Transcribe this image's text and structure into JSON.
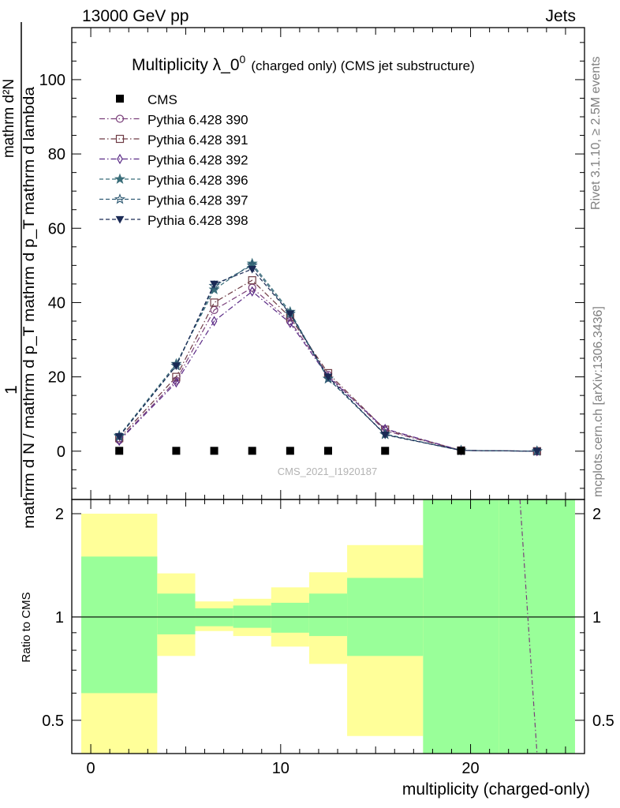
{
  "header": {
    "left": "13000 GeV pp",
    "right": "Jets"
  },
  "title": {
    "main": "Multiplicity λ_0",
    "superscript": "0",
    "suffix": "(charged only) (CMS jet substructure)"
  },
  "side_labels": {
    "rivet": "Rivet 3.1.10, ≥ 2.5M events",
    "mcplots": "mcplots.cern.ch [arXiv:1306.3436]"
  },
  "watermark": "CMS_2021_I1920187",
  "ylabel_main": {
    "one": "1",
    "numerator": "mathrm d²N",
    "denominator": "mathrm d N / mathrm d p_T mathrm d p_T mathrm d lambda"
  },
  "ratio_ylabel": "Ratio to CMS",
  "xlabel": "multiplicity (charged-only)",
  "chart_data": {
    "type": "line",
    "main_panel": {
      "xlim": [
        -1,
        26
      ],
      "ylim": [
        -13,
        114
      ],
      "yticks": [
        0,
        20,
        40,
        60,
        80,
        100
      ],
      "xticks": [
        0,
        10,
        20
      ],
      "legend_placement": "top-left",
      "cms": {
        "name": "CMS",
        "x": [
          1.5,
          4.5,
          6.5,
          8.5,
          10.5,
          12.5,
          15.5,
          19.5,
          23.5
        ],
        "y": [
          0.1,
          0.1,
          0.1,
          0.1,
          0.1,
          0.1,
          0.1,
          0.1,
          0.0
        ]
      },
      "series": [
        {
          "name": "Pythia 6.428 390",
          "color": "#7a3f7a",
          "marker": "circle",
          "dash": "dashdot",
          "x": [
            1.5,
            4.5,
            6.5,
            8.5,
            10.5,
            12.5,
            15.5,
            19.5,
            23.5
          ],
          "y": [
            3.0,
            19.0,
            38.0,
            44.0,
            35.0,
            20.5,
            5.5,
            0.2,
            0.0
          ]
        },
        {
          "name": "Pythia 6.428 391",
          "color": "#6e3b44",
          "marker": "square",
          "dash": "dashdot",
          "x": [
            1.5,
            4.5,
            6.5,
            8.5,
            10.5,
            12.5,
            15.5,
            19.5,
            23.5
          ],
          "y": [
            3.5,
            20.0,
            40.0,
            46.0,
            36.0,
            21.0,
            5.8,
            0.2,
            0.0
          ]
        },
        {
          "name": "Pythia 6.428 392",
          "color": "#5a2a86",
          "marker": "diamond",
          "dash": "dashdot",
          "x": [
            1.5,
            4.5,
            6.5,
            8.5,
            10.5,
            12.5,
            15.5,
            19.5,
            23.5
          ],
          "y": [
            2.8,
            18.5,
            35.0,
            43.0,
            34.5,
            20.0,
            6.0,
            0.2,
            0.0
          ]
        },
        {
          "name": "Pythia 6.428 396",
          "color": "#3b6e7a",
          "marker": "star",
          "dash": "dashed",
          "x": [
            1.5,
            4.5,
            6.5,
            8.5,
            10.5,
            12.5,
            15.5,
            19.5,
            23.5
          ],
          "y": [
            4.2,
            23.5,
            43.5,
            50.5,
            37.5,
            19.5,
            4.5,
            0.2,
            0.0
          ]
        },
        {
          "name": "Pythia 6.428 397",
          "color": "#2f5a73",
          "marker": "star-open",
          "dash": "dashed",
          "x": [
            1.5,
            4.5,
            6.5,
            8.5,
            10.5,
            12.5,
            15.5,
            19.5,
            23.5
          ],
          "y": [
            4.0,
            23.0,
            44.5,
            50.0,
            37.0,
            19.5,
            4.6,
            0.2,
            0.0
          ]
        },
        {
          "name": "Pythia 6.428 398",
          "color": "#1b2a55",
          "marker": "triangle-down",
          "dash": "dashed",
          "x": [
            1.5,
            4.5,
            6.5,
            8.5,
            10.5,
            12.5,
            15.5,
            19.5,
            23.5
          ],
          "y": [
            4.0,
            23.0,
            45.0,
            49.0,
            37.0,
            20.0,
            4.4,
            0.2,
            0.0
          ]
        }
      ]
    },
    "ratio_panel": {
      "ylim": [
        0.4,
        2.2
      ],
      "yticks": [
        0.5,
        1,
        2
      ],
      "log_scale": true,
      "reference_line": 1,
      "bands": [
        {
          "x0": -0.5,
          "x1": 3.5,
          "green": [
            0.6,
            1.5
          ],
          "yellow": [
            0.4,
            2.0
          ]
        },
        {
          "x0": 3.5,
          "x1": 5.5,
          "green": [
            0.89,
            1.17
          ],
          "yellow": [
            0.77,
            1.34
          ]
        },
        {
          "x0": 5.5,
          "x1": 7.5,
          "green": [
            0.94,
            1.06
          ],
          "yellow": [
            0.91,
            1.11
          ]
        },
        {
          "x0": 7.5,
          "x1": 9.5,
          "green": [
            0.93,
            1.08
          ],
          "yellow": [
            0.88,
            1.13
          ]
        },
        {
          "x0": 9.5,
          "x1": 11.5,
          "green": [
            0.9,
            1.1
          ],
          "yellow": [
            0.82,
            1.22
          ]
        },
        {
          "x0": 11.5,
          "x1": 13.5,
          "green": [
            0.88,
            1.17
          ],
          "yellow": [
            0.73,
            1.35
          ]
        },
        {
          "x0": 13.5,
          "x1": 17.5,
          "green": [
            0.77,
            1.3
          ],
          "yellow": [
            0.45,
            1.62
          ]
        },
        {
          "x0": 17.5,
          "x1": 21.5,
          "green": [
            0.4,
            2.2
          ],
          "yellow": [
            0.4,
            2.2
          ]
        },
        {
          "x0": 21.5,
          "x1": 25.5,
          "green": [
            0.4,
            2.2
          ],
          "yellow": [
            0.4,
            2.2
          ]
        }
      ],
      "line_segment": {
        "color": "#7a3f7a",
        "x": [
          22.6,
          23.5
        ],
        "y": [
          2.2,
          0.4
        ]
      }
    }
  }
}
